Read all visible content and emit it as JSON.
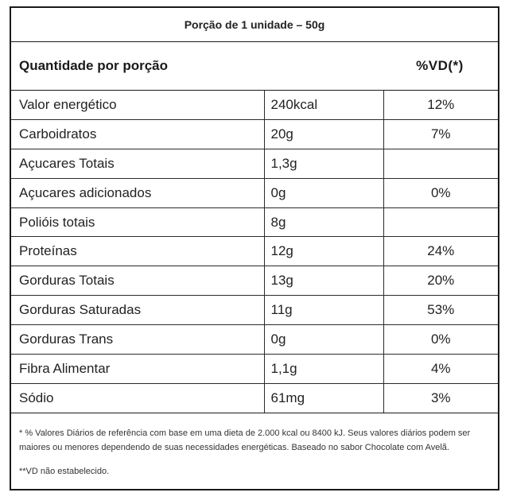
{
  "portion": "Porção de 1 unidade – 50g",
  "header": {
    "quantity_label": "Quantidade por porção",
    "vd_label": "%VD(*)"
  },
  "rows": [
    {
      "name": "Valor energético",
      "qty": "240kcal",
      "vd": "12%"
    },
    {
      "name": "Carboidratos",
      "qty": "20g",
      "vd": "7%"
    },
    {
      "name": "Açucares Totais",
      "qty": "1,3g",
      "vd": ""
    },
    {
      "name": "Açucares adicionados",
      "qty": "0g",
      "vd": "0%"
    },
    {
      "name": "Polióis totais",
      "qty": "8g",
      "vd": ""
    },
    {
      "name": "Proteínas",
      "qty": "12g",
      "vd": "24%"
    },
    {
      "name": "Gorduras Totais",
      "qty": "13g",
      "vd": "20%"
    },
    {
      "name": "Gorduras Saturadas",
      "qty": "11g",
      "vd": "53%"
    },
    {
      "name": "Gorduras Trans",
      "qty": "0g",
      "vd": "0%"
    },
    {
      "name": "Fibra Alimentar",
      "qty": "1,1g",
      "vd": "4%"
    },
    {
      "name": "Sódio",
      "qty": "61mg",
      "vd": "3%"
    }
  ],
  "footnotes": {
    "vd_reference": "* % Valores Diários de referência com base em uma dieta de 2.000 kcal ou 8400 kJ. Seus valores diários podem ser maiores ou menores dependendo de suas necessidades energéticas. Baseado no sabor Chocolate com Avelã.",
    "vd_not_established": "**VD não estabelecido."
  }
}
